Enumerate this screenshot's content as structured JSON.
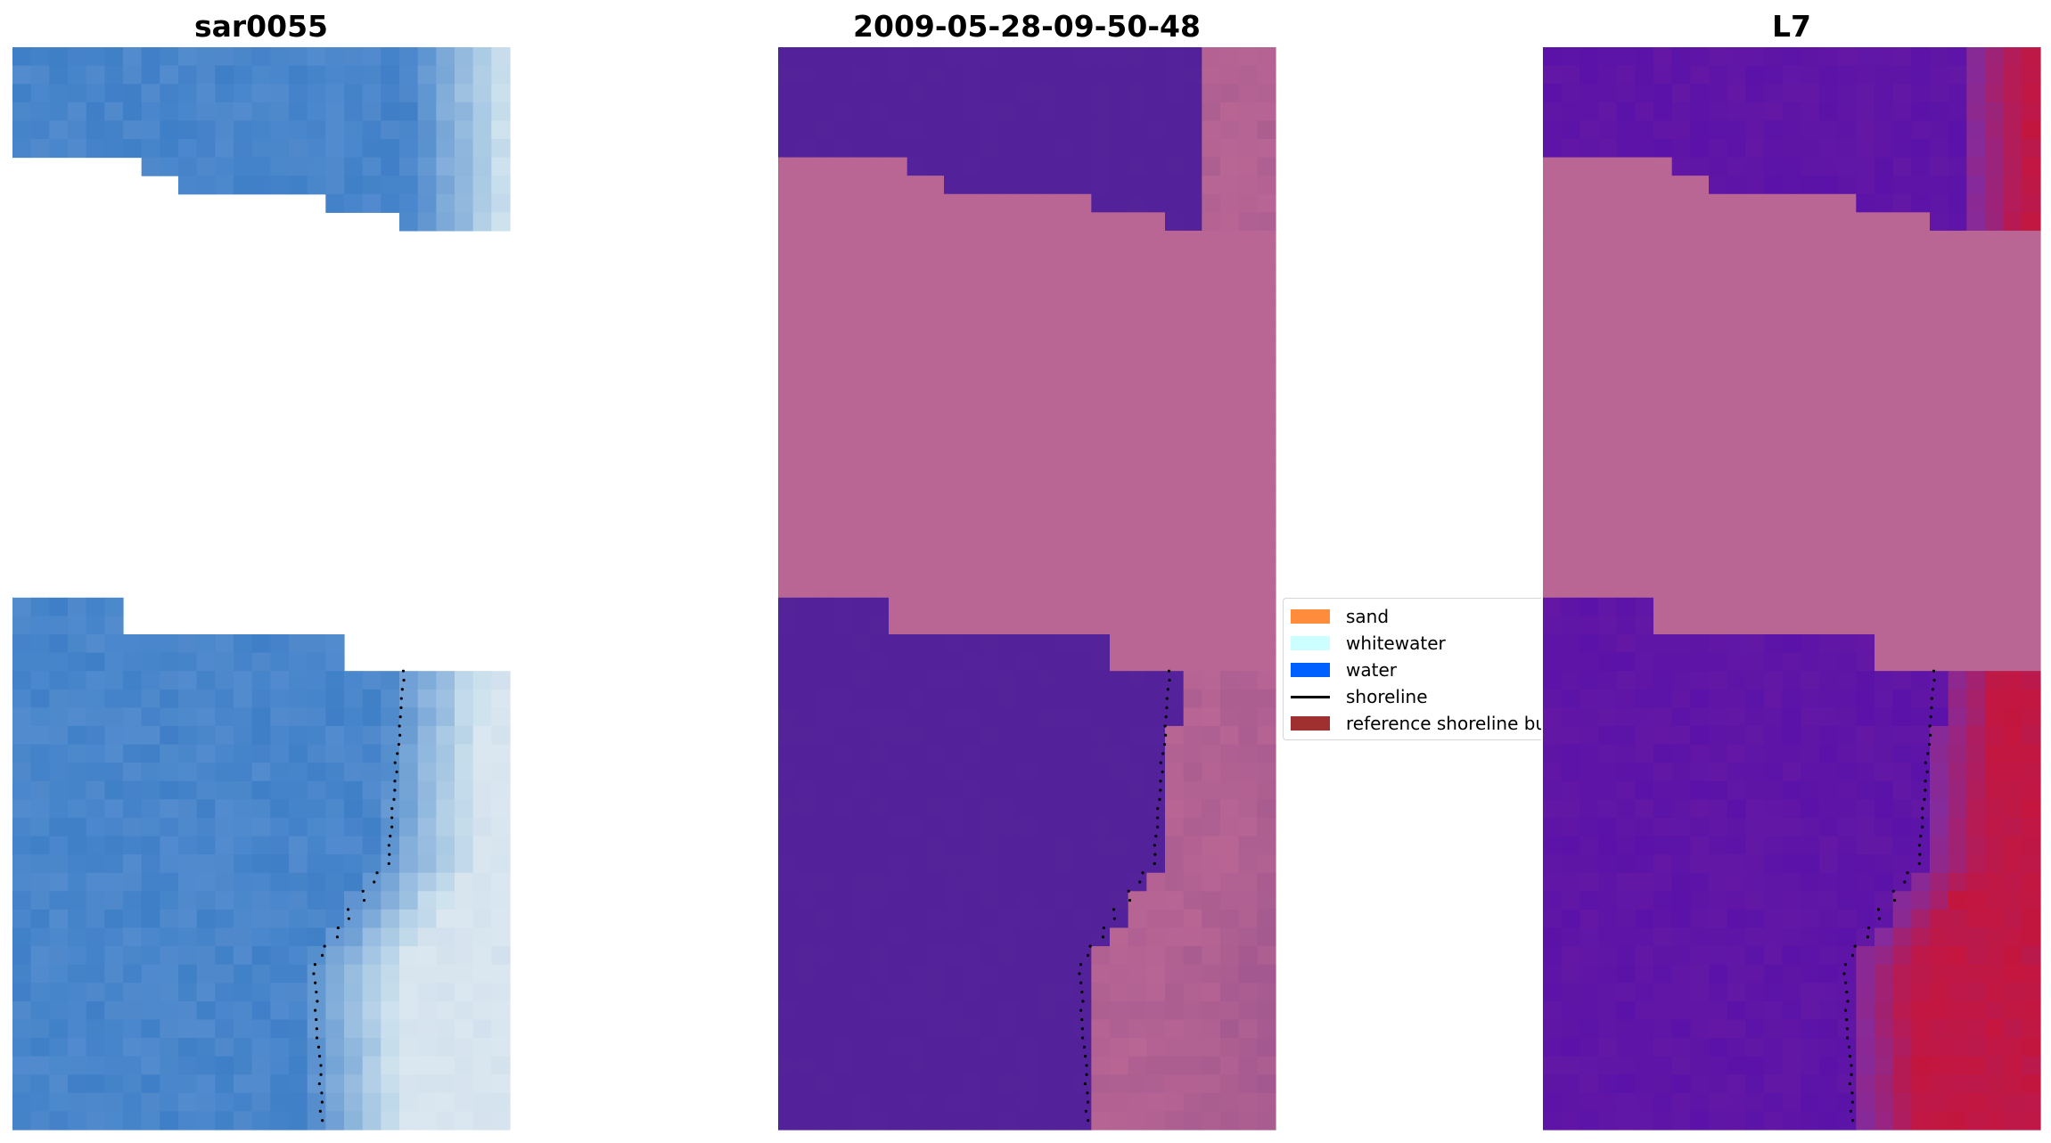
{
  "panels": {
    "left_title": "sar0055",
    "center_title": "2009-05-28-09-50-48",
    "right_title": "L7"
  },
  "legend": {
    "items": [
      {
        "label": "sand",
        "color": "#ff8c3b"
      },
      {
        "label": "whitewater",
        "color": "#ccffff"
      },
      {
        "label": "water",
        "color": "#0060ff"
      },
      {
        "label": "shoreline",
        "color": "#000000"
      },
      {
        "label": "reference shoreline bu",
        "color": "#a03030"
      }
    ]
  },
  "colors": {
    "water_rgb": "#3f7fc7",
    "surf_rgb": "#cfe3ee",
    "classified_water": "#53229a",
    "classified_land": "#b96694",
    "index_low": "#5a12a8",
    "index_high": "#c4163e",
    "shoreline": "#000000"
  },
  "icons": {
    "legend_line": "shoreline-line-icon"
  }
}
